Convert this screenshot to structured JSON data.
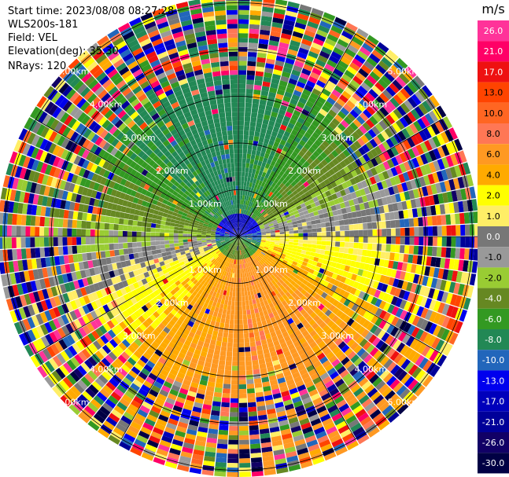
{
  "header": {
    "start_time": "Start time: 2023/08/08 08:27:28",
    "instrument": "WLS200s-181",
    "field": "Field: VEL",
    "elevation": "Elevation(deg): 35.30",
    "nrays": "NRays: 120"
  },
  "chart_data": {
    "type": "heatmap",
    "projection": "polar-ppi",
    "field": "VEL",
    "units": "m/s",
    "rays": 120,
    "elevation_deg": 35.3,
    "range_rings_km": [
      1.0,
      2.0,
      3.0,
      4.0,
      5.0
    ],
    "ring_labels": [
      "1.00km",
      "2.00km",
      "3.00km",
      "4.00km",
      "5.00km"
    ],
    "colorbar": {
      "label": "m/s",
      "ticks": [
        "26.0",
        "21.0",
        "17.0",
        "13.0",
        "10.0",
        "8.0",
        "6.0",
        "4.0",
        "2.0",
        "1.0",
        "0.0",
        "-1.0",
        "-2.0",
        "-4.0",
        "-6.0",
        "-8.0",
        "-10.0",
        "-13.0",
        "-17.0",
        "-21.0",
        "-26.0",
        "-30.0"
      ],
      "colors": [
        "#ff3399",
        "#ff0066",
        "#ee1111",
        "#ff4400",
        "#ff6622",
        "#ff7755",
        "#ff9922",
        "#ffaa00",
        "#ffff00",
        "#ffee66",
        "#777777",
        "#999999",
        "#99cc33",
        "#668822",
        "#339922",
        "#228855",
        "#2266bb",
        "#0000ee",
        "#0000bb",
        "#000099",
        "#110066",
        "#000044"
      ]
    },
    "pattern": {
      "near_origin": "dark blue/green approaching region",
      "north_sector": "green -6 to -8 m/s",
      "south_sector": "orange/yellow receding 2 to 8 m/s",
      "far_range": "speckled noise beyond ~3.5 km"
    }
  }
}
